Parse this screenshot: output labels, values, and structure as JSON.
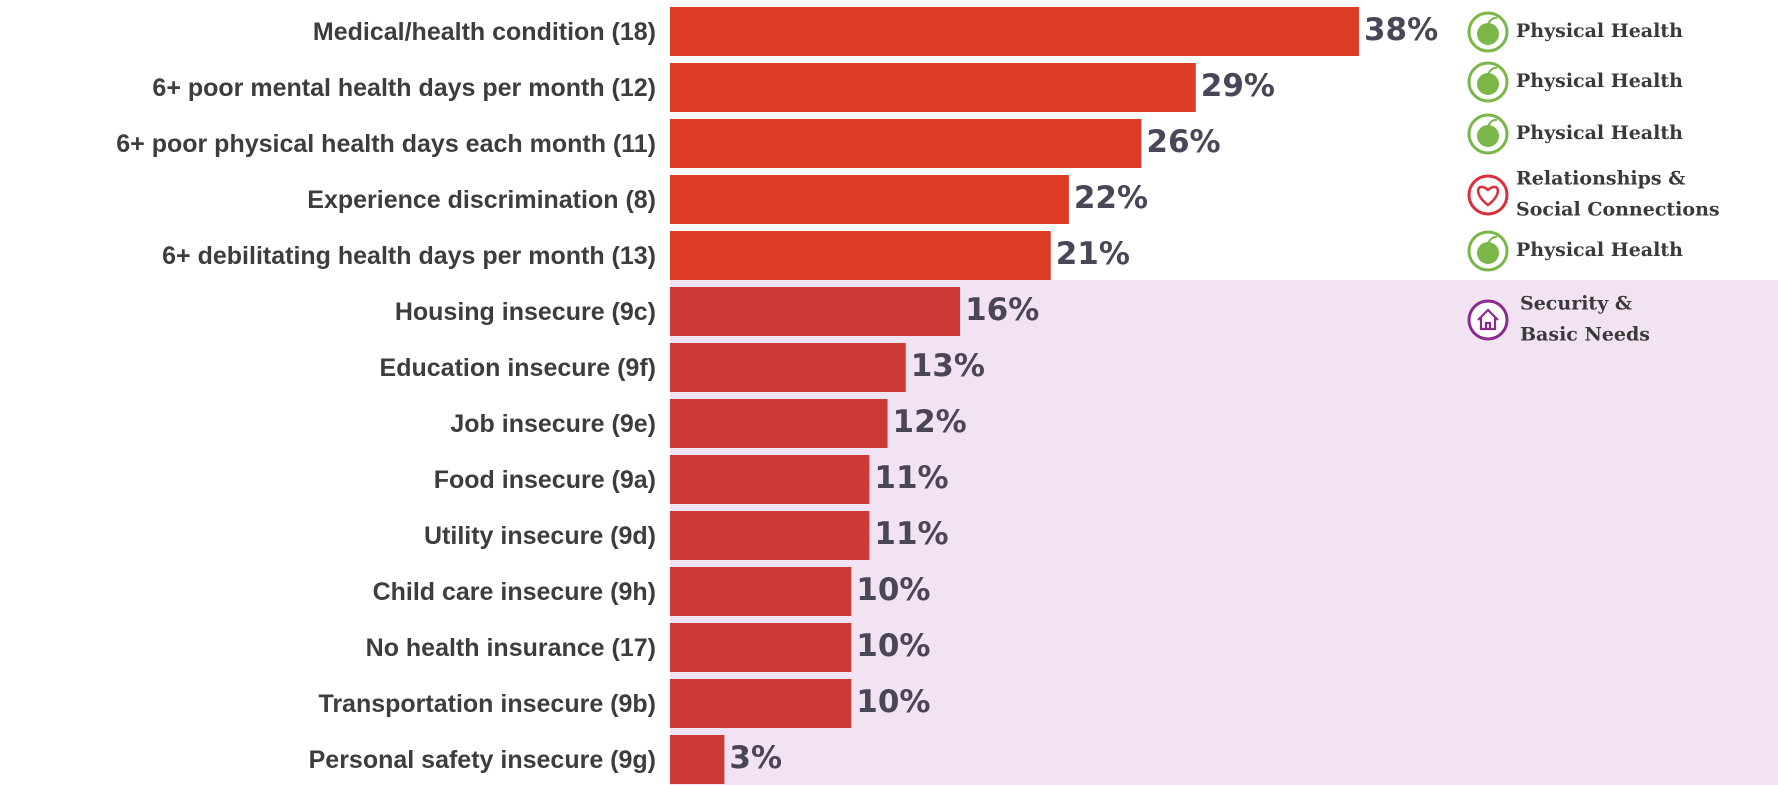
{
  "chart_data": {
    "type": "barh",
    "categories": [
      "Medical/health condition (18)",
      "6+ poor mental health days per month (12)",
      "6+ poor physical health days each month (11)",
      "Experience discrimination (8)",
      "6+ debilitating health days per month (13)",
      "Housing insecure (9c)",
      "Education insecure (9f)",
      "Job insecure (9e)",
      "Food insecure (9a)",
      "Utility insecure (9d)",
      "Child care insecure (9h)",
      "No health insurance (17)",
      "Transportation insecure (9b)",
      "Personal safety insecure (9g)"
    ],
    "values": [
      38,
      29,
      26,
      22,
      21,
      16,
      13,
      12,
      11,
      11,
      10,
      10,
      10,
      3
    ],
    "value_labels": [
      "38%",
      "29%",
      "26%",
      "22%",
      "21%",
      "16%",
      "13%",
      "12%",
      "11%",
      "11%",
      "10%",
      "10%",
      "10%",
      "3%"
    ],
    "colors": [
      "#dc3b26",
      "#dc3b26",
      "#dc3b26",
      "#dc3b26",
      "#dc3b26",
      "#cc3a35",
      "#cc3a35",
      "#cc3a35",
      "#cc3a35",
      "#cc3a35",
      "#cc3a35",
      "#cc3a35",
      "#cc3a35",
      "#cc3a35"
    ],
    "tags": [
      [
        "Physical Health"
      ],
      [
        "Physical Health"
      ],
      [
        "Physical Health"
      ],
      [
        "Relationships &",
        "Social Connections"
      ],
      [
        "Physical Health"
      ],
      [
        "Security &",
        "Basic Needs"
      ]
    ]
  }
}
